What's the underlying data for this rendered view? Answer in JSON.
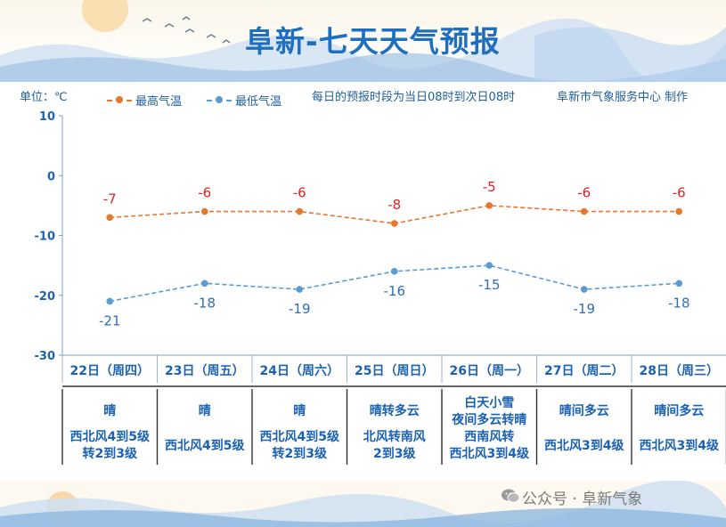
{
  "header": {
    "title": "阜新-七天天气预报",
    "unit": "单位：℃",
    "note": "每日的预报时段为当日08时到次日08时",
    "credit": "阜新市气象服务中心 制作"
  },
  "colors": {
    "high": "#e8772e",
    "low": "#5b9bd5",
    "text_blue": "#1b62b3",
    "high_label": "#e01f1f",
    "low_label": "#2f6fb5"
  },
  "chart_data": {
    "type": "line",
    "categories": [
      "22日（周四）",
      "23日（周五）",
      "24日（周六）",
      "25日（周日）",
      "26日（周一）",
      "27日（周二）",
      "28日（周三）"
    ],
    "series": [
      {
        "name": "最高气温",
        "values": [
          -7,
          -6,
          -6,
          -8,
          -5,
          -6,
          -6
        ]
      },
      {
        "name": "最低气温",
        "values": [
          -21,
          -18,
          -19,
          -16,
          -15,
          -19,
          -18
        ]
      }
    ],
    "ylim": [
      -30,
      10
    ],
    "yticks": [
      10,
      0,
      -10,
      -20,
      -30
    ],
    "ylabel": "单位：℃"
  },
  "days": [
    {
      "weather": [
        "晴"
      ],
      "wind": [
        "西北风4到5级",
        "转2到3级"
      ]
    },
    {
      "weather": [
        "晴"
      ],
      "wind": [
        "西北风4到5级"
      ]
    },
    {
      "weather": [
        "晴"
      ],
      "wind": [
        "西北风4到5级",
        "转2到3级"
      ]
    },
    {
      "weather": [
        "晴转多云"
      ],
      "wind": [
        "北风转南风",
        "2到3级"
      ]
    },
    {
      "weather": [
        "白天小雪",
        "夜间多云转晴"
      ],
      "wind": [
        "西南风转",
        "西北风3到4级"
      ]
    },
    {
      "weather": [
        "晴间多云"
      ],
      "wind": [
        "西北风3到4级"
      ]
    },
    {
      "weather": [
        "晴间多云"
      ],
      "wind": [
        "西北风3到4级"
      ]
    }
  ],
  "watermark": {
    "text": "公众号 · 阜新气象",
    "icon": "wechat-icon"
  }
}
